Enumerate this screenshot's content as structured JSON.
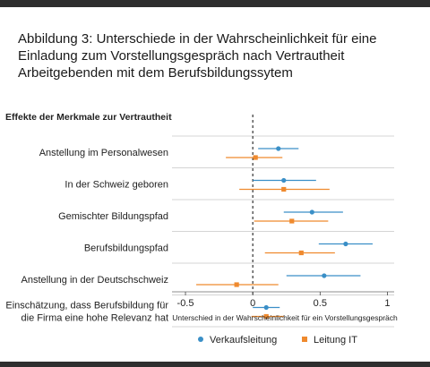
{
  "title_lines": [
    "Abbildung 3: Unterschiede in der Wahrscheinlichkeit für eine",
    "Einladung zum Vorstellungsgespräch  nach Vertrautheit",
    "Arbeitgebenden mit dem Berufsbildungssytem"
  ],
  "chart_data": {
    "type": "scatter",
    "subtitle": "Effekte der Merkmale zur Vertrautheit",
    "xlabel": "Unterschied in der Wahrscheinlichkeit für ein Vorstellungsgespräch",
    "xlim": [
      -0.6,
      1.05
    ],
    "xticks": [
      -0.5,
      0,
      0.5,
      1
    ],
    "xtick_labels": [
      "-0.5",
      "0",
      "0.5",
      "1"
    ],
    "reference_line": 0,
    "categories": [
      [
        "Anstellung im Personalwesen"
      ],
      [
        "In der Schweiz geboren"
      ],
      [
        "Gemischter Bildungspfad"
      ],
      [
        "Berufsbildungspfad"
      ],
      [
        "Anstellung in der Deutschschweiz"
      ],
      [
        "Einschätzung, dass Berufsbildung für",
        "die Firma eine hohe Relevanz hat"
      ]
    ],
    "series": [
      {
        "name": "Verkaufsleitung",
        "color": "#3a8fc7",
        "marker": "circle",
        "values": [
          0.19,
          0.23,
          0.44,
          0.69,
          0.53,
          0.1
        ],
        "ci_low": [
          0.04,
          0.0,
          0.23,
          0.49,
          0.25,
          0.0
        ],
        "ci_high": [
          0.34,
          0.47,
          0.67,
          0.89,
          0.8,
          0.2
        ]
      },
      {
        "name": "Leitung IT",
        "color": "#ef8a2e",
        "marker": "square",
        "values": [
          0.02,
          0.23,
          0.29,
          0.36,
          -0.12,
          0.1
        ],
        "ci_low": [
          -0.2,
          -0.1,
          0.01,
          0.09,
          -0.42,
          -0.01
        ],
        "ci_high": [
          0.22,
          0.57,
          0.56,
          0.61,
          0.19,
          0.23
        ]
      }
    ]
  }
}
